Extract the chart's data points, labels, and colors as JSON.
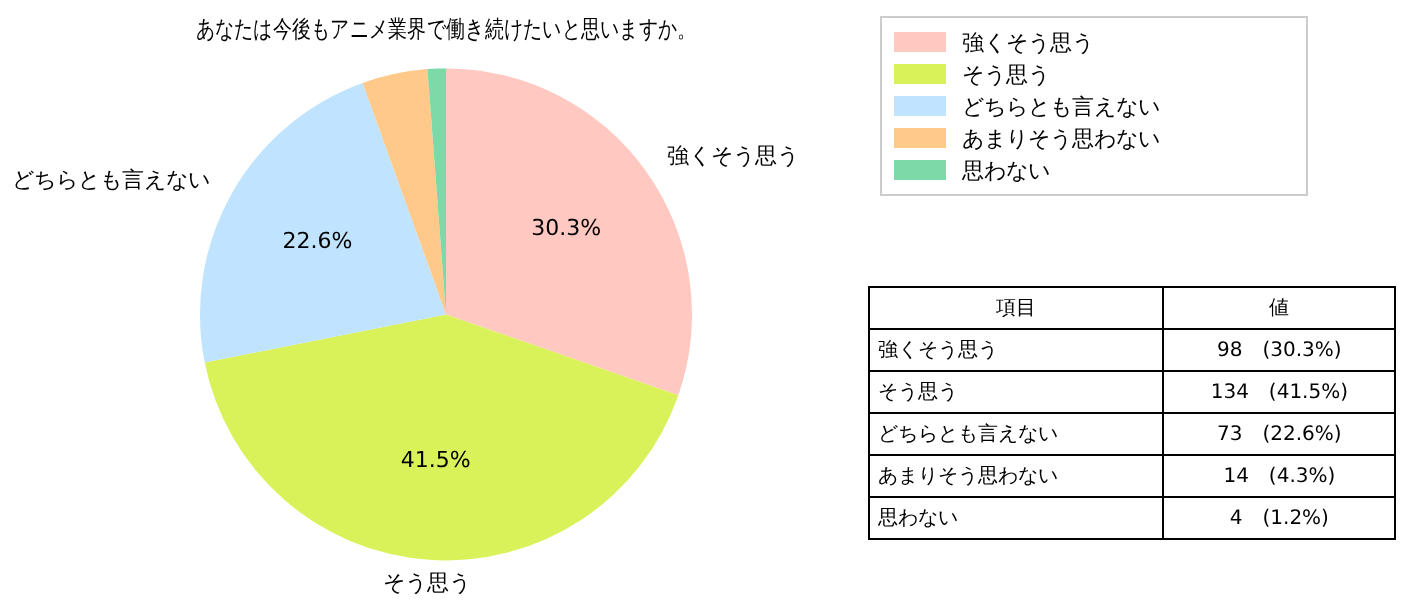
{
  "chart_data": {
    "type": "pie",
    "title": "あなたは今後もアニメ業界で働き続けたいと思いますか。",
    "categories": [
      "強くそう思う",
      "そう思う",
      "どちらとも言えない",
      "あまりそう思わない",
      "思わない"
    ],
    "values": [
      30.3,
      41.5,
      22.6,
      4.3,
      1.2
    ],
    "colors": [
      "#ffc8c0",
      "#d9f25a",
      "#c0e4ff",
      "#ffc98a",
      "#7ed9a8"
    ],
    "value_labels": [
      "30.3%",
      "41.5%",
      "22.6%",
      null,
      null
    ],
    "legend": "top right",
    "annotations": [
      "項目",
      "値",
      "98　(30.3%)",
      "134　(41.5%)",
      "73　(22.6%)",
      "14　(4.3%)",
      "4　(1.2%)"
    ]
  }
}
